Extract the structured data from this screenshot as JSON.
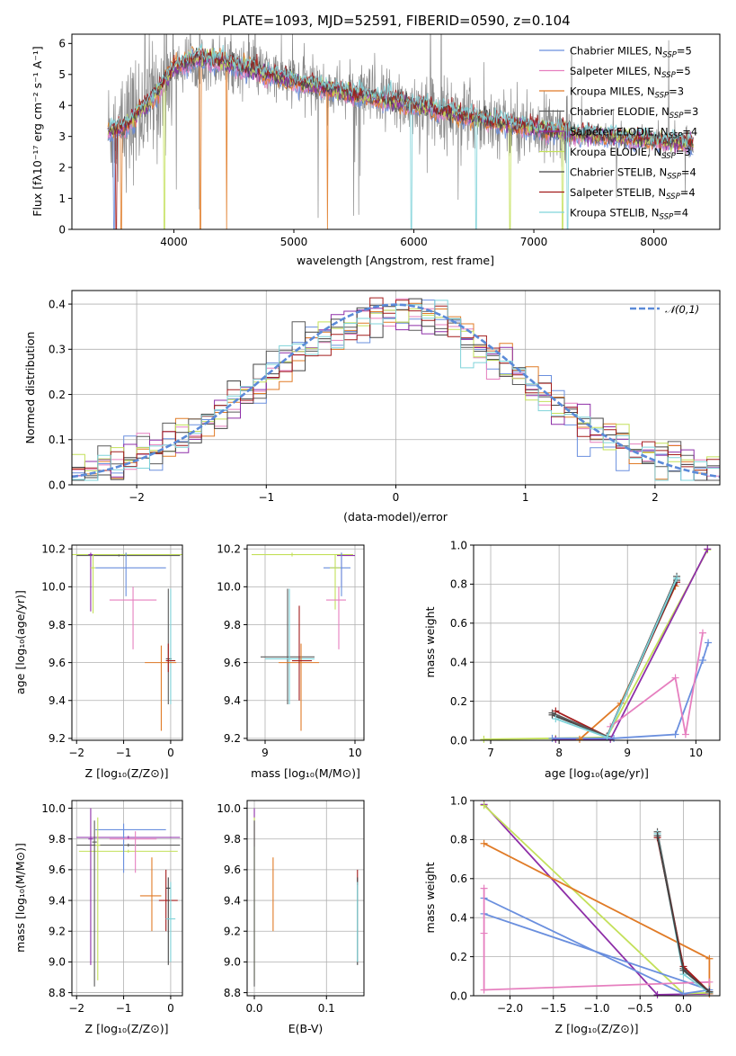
{
  "colors": {
    "chabrier_miles": "#6a8fde",
    "salpeter_miles": "#e67fbf",
    "kroupa_miles": "#e07b27",
    "chabrier_elodie": "#5a5a5a",
    "salpeter_elodie": "#8e2fa8",
    "kroupa_elodie": "#c3e05a",
    "chabrier_stelib": "#444444",
    "salpeter_stelib": "#a31c1c",
    "kroupa_stelib": "#7fd3d9",
    "data": "#888888",
    "gaussian": "#5b8ad8"
  },
  "chart_data": [
    {
      "id": "spectrum",
      "type": "line",
      "title": "PLATE=1093, MJD=52591, FIBERID=0590, z=0.104",
      "xlabel": "wavelength [Angstrom, rest frame]",
      "ylabel": "Flux [fλ10⁻¹⁷ erg cm⁻² s⁻¹ A⁻¹]",
      "xlim": [
        3150,
        8550
      ],
      "ylim": [
        0,
        6.3
      ],
      "xticks": [
        4000,
        5000,
        6000,
        7000,
        8000
      ],
      "yticks": [
        0,
        1,
        2,
        3,
        4,
        5,
        6
      ],
      "grid": false,
      "legend_position": "upper-right",
      "x_range_data": [
        3450,
        8330
      ],
      "continuum_knots": [
        [
          3450,
          3.15
        ],
        [
          3600,
          3.35
        ],
        [
          3800,
          4.1
        ],
        [
          4000,
          5.2
        ],
        [
          4200,
          5.55
        ],
        [
          4500,
          5.3
        ],
        [
          5000,
          4.8
        ],
        [
          5500,
          4.35
        ],
        [
          6000,
          4.0
        ],
        [
          6500,
          3.6
        ],
        [
          7000,
          3.25
        ],
        [
          7500,
          3.05
        ],
        [
          8000,
          2.85
        ],
        [
          8330,
          2.8
        ]
      ],
      "series": [
        {
          "name": "Chabrier MILES, Nₛₛₚ=5",
          "color_key": "chabrier_miles"
        },
        {
          "name": "Salpeter MILES, Nₛₛₚ=5",
          "color_key": "salpeter_miles"
        },
        {
          "name": "Kroupa MILES, Nₛₛₚ=3",
          "color_key": "kroupa_miles"
        },
        {
          "name": "Chabrier ELODIE, Nₛₛₚ=3",
          "color_key": "chabrier_elodie"
        },
        {
          "name": "Salpeter ELODIE, Nₛₛₚ=4",
          "color_key": "salpeter_elodie"
        },
        {
          "name": "Kroupa ELODIE, Nₛₛₚ=3",
          "color_key": "kroupa_elodie"
        },
        {
          "name": "Chabrier STELIB, Nₛₛₚ=4",
          "color_key": "chabrier_stelib"
        },
        {
          "name": "Salpeter STELIB, Nₛₛₚ=4",
          "color_key": "salpeter_stelib"
        },
        {
          "name": "Kroupa STELIB, Nₛₛₚ=4",
          "color_key": "kroupa_stelib"
        }
      ],
      "legend_labels": [
        {
          "pre": "Chabrier MILES, N",
          "sub": "SSP",
          "post": "=5"
        },
        {
          "pre": "Salpeter MILES, N",
          "sub": "SSP",
          "post": "=5"
        },
        {
          "pre": "Kroupa MILES, N",
          "sub": "SSP",
          "post": "=3"
        },
        {
          "pre": "Chabrier ELODIE, N",
          "sub": "SSP",
          "post": "=3"
        },
        {
          "pre": "Salpeter ELODIE, N",
          "sub": "SSP",
          "post": "=4"
        },
        {
          "pre": "Kroupa ELODIE, N",
          "sub": "SSP",
          "post": "=3"
        },
        {
          "pre": "Chabrier STELIB, N",
          "sub": "SSP",
          "post": "=4"
        },
        {
          "pre": "Salpeter STELIB, N",
          "sub": "SSP",
          "post": "=4"
        },
        {
          "pre": "Kroupa STELIB, N",
          "sub": "SSP",
          "post": "=4"
        }
      ]
    },
    {
      "id": "residuals",
      "type": "histogram",
      "xlabel": "(data-model)/error",
      "ylabel": "Normed distribution",
      "xlim": [
        -2.5,
        2.5
      ],
      "ylim": [
        0,
        0.43
      ],
      "xticks": [
        -2,
        -1,
        0,
        1,
        2
      ],
      "yticks": [
        0.0,
        0.1,
        0.2,
        0.3,
        0.4
      ],
      "grid": true,
      "legend_position": "upper-right",
      "legend": "𝒩(0,1)",
      "bin_width": 0.1,
      "series_colors": [
        "chabrier_miles",
        "salpeter_miles",
        "kroupa_miles",
        "chabrier_elodie",
        "salpeter_elodie",
        "kroupa_elodie",
        "chabrier_stelib",
        "salpeter_stelib",
        "kroupa_stelib"
      ]
    },
    {
      "id": "age_vs_Z",
      "type": "errorbar",
      "xlabel": "Z [log₁₀(Z/Z⊙)]",
      "ylabel": "age  [log₁₀(age/yr)]",
      "xlim": [
        -2.1,
        0.25
      ],
      "ylim": [
        9.19,
        10.22
      ],
      "xticks": [
        -2,
        -1,
        0
      ],
      "yticks": [
        9.2,
        9.4,
        9.6,
        9.8,
        10.0,
        10.2
      ],
      "grid": true,
      "points": [
        {
          "c": "kroupa_elodie",
          "x": -0.95,
          "xl": -2.1,
          "xh": 0.25,
          "y": 10.17,
          "yl": 10.16,
          "yh": 10.18
        },
        {
          "c": "chabrier_elodie",
          "x": -1.1,
          "xl": -2.0,
          "xh": 0.2,
          "y": 10.165,
          "yl": 10.16,
          "yh": 10.17
        },
        {
          "c": "salpeter_elodie",
          "x": -1.7,
          "xl": -1.75,
          "xh": -1.65,
          "y": 10.17,
          "yl": 9.87,
          "yh": 10.18
        },
        {
          "c": "kroupa_elodie",
          "x": -1.65,
          "xl": -1.7,
          "xh": -1.6,
          "y": 10.1,
          "yl": 9.86,
          "yh": 10.17
        },
        {
          "c": "chabrier_miles",
          "x": -0.95,
          "xl": -1.6,
          "xh": -0.1,
          "y": 10.1,
          "yl": 9.95,
          "yh": 10.18
        },
        {
          "c": "salpeter_miles",
          "x": -0.8,
          "xl": -1.3,
          "xh": -0.3,
          "y": 9.93,
          "yl": 9.67,
          "yh": 10.0
        },
        {
          "c": "chabrier_elodie",
          "x": -0.05,
          "xl": -0.1,
          "xh": 0.02,
          "y": 9.62,
          "yl": 9.38,
          "yh": 9.99
        },
        {
          "c": "kroupa_stelib",
          "x": 0.0,
          "xl": -0.1,
          "xh": 0.05,
          "y": 9.61,
          "yl": 9.38,
          "yh": 9.99
        },
        {
          "c": "kroupa_miles",
          "x": -0.2,
          "xl": -0.55,
          "xh": 0.12,
          "y": 9.6,
          "yl": 9.24,
          "yh": 9.69
        },
        {
          "c": "salpeter_stelib",
          "x": -0.05,
          "xl": -0.1,
          "xh": 0.1,
          "y": 9.61,
          "yl": 9.55,
          "yh": 9.7
        }
      ]
    },
    {
      "id": "age_vs_mass",
      "type": "errorbar",
      "xlabel": "mass [log₁₀(M/M⊙)]",
      "ylabel": "",
      "xlim": [
        8.8,
        10.1
      ],
      "ylim": [
        9.19,
        10.22
      ],
      "xticks": [
        9,
        10
      ],
      "yticks": [
        9.2,
        9.4,
        9.6,
        9.8,
        10.0,
        10.2
      ],
      "grid": true,
      "points": [
        {
          "c": "kroupa_elodie",
          "x": 9.3,
          "xl": 8.85,
          "xh": 9.98,
          "y": 10.17,
          "yl": 10.16,
          "yh": 10.18
        },
        {
          "c": "salpeter_elodie",
          "x": 9.85,
          "xl": 9.8,
          "xh": 10.0,
          "y": 10.165,
          "yl": 10.0,
          "yh": 10.18
        },
        {
          "c": "chabrier_miles",
          "x": 9.85,
          "xl": 9.65,
          "xh": 9.95,
          "y": 10.1,
          "yl": 9.95,
          "yh": 10.18
        },
        {
          "c": "kroupa_elodie",
          "x": 9.78,
          "xl": 9.72,
          "xh": 9.84,
          "y": 10.1,
          "yl": 9.88,
          "yh": 10.17
        },
        {
          "c": "salpeter_miles",
          "x": 9.82,
          "xl": 9.68,
          "xh": 9.9,
          "y": 9.93,
          "yl": 9.67,
          "yh": 10.0
        },
        {
          "c": "chabrier_elodie",
          "x": 9.25,
          "xl": 8.95,
          "xh": 9.55,
          "y": 9.63,
          "yl": 9.38,
          "yh": 9.99
        },
        {
          "c": "kroupa_stelib",
          "x": 9.27,
          "xl": 9.0,
          "xh": 9.55,
          "y": 9.62,
          "yl": 9.38,
          "yh": 9.99
        },
        {
          "c": "kroupa_miles",
          "x": 9.4,
          "xl": 9.15,
          "xh": 9.6,
          "y": 9.6,
          "yl": 9.24,
          "yh": 9.7
        },
        {
          "c": "salpeter_stelib",
          "x": 9.38,
          "xl": 9.3,
          "xh": 9.52,
          "y": 9.61,
          "yl": 9.4,
          "yh": 9.9
        }
      ]
    },
    {
      "id": "weight_vs_age",
      "type": "line",
      "xlabel": "age  [log₁₀(age/yr)]",
      "ylabel": "mass weight",
      "xlim": [
        6.75,
        10.35
      ],
      "ylim": [
        0,
        1
      ],
      "xticks": [
        7,
        8,
        9,
        10
      ],
      "yticks": [
        0.0,
        0.2,
        0.4,
        0.6,
        0.8,
        1.0
      ],
      "grid": true,
      "series": [
        {
          "c": "kroupa_elodie",
          "x": [
            6.9,
            7.95,
            8.7,
            10.17
          ],
          "y": [
            0.005,
            0.01,
            0.015,
            0.975
          ]
        },
        {
          "c": "salpeter_elodie",
          "x": [
            7.95,
            8.75,
            10.17
          ],
          "y": [
            0.005,
            0.005,
            0.98
          ]
        },
        {
          "c": "chabrier_miles",
          "x": [
            7.9,
            8.8,
            9.7,
            10.1,
            10.18
          ],
          "y": [
            0.01,
            0.01,
            0.03,
            0.41,
            0.5
          ]
        },
        {
          "c": "salpeter_miles",
          "x": [
            8.75,
            9.7,
            9.85,
            10.1
          ],
          "y": [
            0.07,
            0.32,
            0.03,
            0.55
          ]
        },
        {
          "c": "kroupa_miles",
          "x": [
            8.3,
            8.9,
            9.7
          ],
          "y": [
            0.005,
            0.19,
            0.79
          ]
        },
        {
          "c": "salpeter_stelib",
          "x": [
            7.95,
            8.7,
            9.72
          ],
          "y": [
            0.15,
            0.02,
            0.81
          ]
        },
        {
          "c": "chabrier_stelib",
          "x": [
            7.9,
            8.7,
            9.72
          ],
          "y": [
            0.13,
            0.02,
            0.82
          ]
        },
        {
          "c": "chabrier_elodie",
          "x": [
            7.9,
            8.7,
            9.72
          ],
          "y": [
            0.14,
            0.02,
            0.84
          ]
        },
        {
          "c": "kroupa_stelib",
          "x": [
            7.95,
            8.7,
            9.72
          ],
          "y": [
            0.11,
            0.015,
            0.83
          ]
        }
      ]
    },
    {
      "id": "mass_vs_Z",
      "type": "errorbar",
      "xlabel": "Z [log₁₀(Z/Z⊙)]",
      "ylabel": "mass [log₁₀(M/M⊙)]",
      "xlim": [
        -2.1,
        0.25
      ],
      "ylim": [
        8.78,
        10.05
      ],
      "xticks": [
        -2,
        -1,
        0
      ],
      "yticks": [
        8.8,
        9.0,
        9.2,
        9.4,
        9.6,
        9.8,
        10.0
      ],
      "grid": true,
      "points": [
        {
          "c": "salpeter_elodie",
          "x": -0.9,
          "xl": -2.0,
          "xh": 0.2,
          "y": 9.81,
          "yl": 9.8,
          "yh": 9.82
        },
        {
          "c": "chabrier_elodie",
          "x": -0.9,
          "xl": -2.0,
          "xh": 0.2,
          "y": 9.76,
          "yl": 9.75,
          "yh": 9.77
        },
        {
          "c": "kroupa_elodie",
          "x": -0.9,
          "xl": -1.95,
          "xh": 0.15,
          "y": 9.72,
          "yl": 9.71,
          "yh": 9.73
        },
        {
          "c": "chabrier_miles",
          "x": -1.0,
          "xl": -1.6,
          "xh": -0.1,
          "y": 9.86,
          "yl": 9.58,
          "yh": 9.9
        },
        {
          "c": "salpeter_elodie",
          "x": -1.7,
          "xl": -1.75,
          "xh": -1.65,
          "y": 9.8,
          "yl": 8.98,
          "yh": 10.0
        },
        {
          "c": "chabrier_elodie",
          "x": -1.62,
          "xl": -1.67,
          "xh": -1.57,
          "y": 9.78,
          "yl": 8.84,
          "yh": 9.92
        },
        {
          "c": "kroupa_elodie",
          "x": -1.55,
          "xl": -1.6,
          "xh": -1.5,
          "y": 9.76,
          "yl": 8.88,
          "yh": 9.94
        },
        {
          "c": "salpeter_miles",
          "x": -0.75,
          "xl": -1.3,
          "xh": -0.3,
          "y": 9.8,
          "yl": 9.58,
          "yh": 9.85
        },
        {
          "c": "kroupa_miles",
          "x": -0.4,
          "xl": -0.65,
          "xh": -0.2,
          "y": 9.43,
          "yl": 9.2,
          "yh": 9.68
        },
        {
          "c": "salpeter_stelib",
          "x": -0.1,
          "xl": -0.25,
          "xh": 0.15,
          "y": 9.4,
          "yl": 9.2,
          "yh": 9.6
        },
        {
          "c": "chabrier_stelib",
          "x": -0.05,
          "xl": -0.1,
          "xh": 0.0,
          "y": 9.48,
          "yl": 8.98,
          "yh": 9.55
        },
        {
          "c": "kroupa_stelib",
          "x": 0.0,
          "xl": -0.1,
          "xh": 0.1,
          "y": 9.28,
          "yl": 9.0,
          "yh": 9.52
        }
      ]
    },
    {
      "id": "mass_vs_ebv",
      "type": "errorbar",
      "xlabel": "E(B-V)",
      "ylabel": "",
      "xlim": [
        -0.01,
        0.152
      ],
      "ylim": [
        8.78,
        10.05
      ],
      "xticks": [
        0.0,
        0.1
      ],
      "yticks": [
        8.8,
        9.0,
        9.2,
        9.4,
        9.6,
        9.8,
        10.0
      ],
      "grid": true,
      "points": [
        {
          "c": "salpeter_elodie",
          "x": 0.0,
          "xl": 0.0,
          "xh": 0.0,
          "y": 9.81,
          "yl": 9.75,
          "yh": 10.0
        },
        {
          "c": "kroupa_elodie",
          "x": 0.0,
          "xl": 0.0,
          "xh": 0.0,
          "y": 9.72,
          "yl": 8.88,
          "yh": 9.94
        },
        {
          "c": "chabrier_elodie",
          "x": 0.0,
          "xl": 0.0,
          "xh": 0.0,
          "y": 9.76,
          "yl": 8.84,
          "yh": 9.92
        },
        {
          "c": "kroupa_miles",
          "x": 0.026,
          "xl": 0.026,
          "xh": 0.026,
          "y": 9.43,
          "yl": 9.2,
          "yh": 9.68
        },
        {
          "c": "salpeter_stelib",
          "x": 0.143,
          "xl": 0.143,
          "xh": 0.143,
          "y": 9.55,
          "yl": 9.5,
          "yh": 9.6
        },
        {
          "c": "chabrier_stelib",
          "x": 0.143,
          "xl": 0.143,
          "xh": 0.143,
          "y": 9.48,
          "yl": 8.98,
          "yh": 9.55
        },
        {
          "c": "kroupa_stelib",
          "x": 0.143,
          "xl": 0.143,
          "xh": 0.143,
          "y": 9.28,
          "yl": 9.0,
          "yh": 9.52
        }
      ]
    },
    {
      "id": "weight_vs_Z",
      "type": "line",
      "xlabel": "Z [log₁₀(Z/Z⊙)]",
      "ylabel": "mass weight",
      "xlim": [
        -2.42,
        0.42
      ],
      "ylim": [
        0,
        1
      ],
      "xticks": [
        -2.0,
        -1.5,
        -1.0,
        -0.5,
        0.0
      ],
      "yticks": [
        0.0,
        0.2,
        0.4,
        0.6,
        0.8,
        1.0
      ],
      "grid": true,
      "series": [
        {
          "c": "salpeter_elodie",
          "x": [
            -2.3,
            -0.3,
            0.3
          ],
          "y": [
            0.98,
            0.005,
            0.01
          ]
        },
        {
          "c": "kroupa_elodie",
          "x": [
            -2.3,
            0.0,
            0.3
          ],
          "y": [
            0.975,
            0.01,
            0.015
          ]
        },
        {
          "c": "kroupa_miles",
          "x": [
            -2.3,
            0.3,
            0.3
          ],
          "y": [
            0.78,
            0.19,
            0.01
          ]
        },
        {
          "c": "chabrier_miles",
          "x": [
            -2.3,
            0.3,
            0.0,
            -2.3
          ],
          "y": [
            0.42,
            0.03,
            0.01,
            0.5
          ]
        },
        {
          "c": "salpeter_miles",
          "x": [
            -2.3,
            -2.3,
            -2.3,
            0.3
          ],
          "y": [
            0.55,
            0.32,
            0.03,
            0.07
          ]
        },
        {
          "c": "chabrier_elodie",
          "x": [
            -0.3,
            0.0,
            0.3
          ],
          "y": [
            0.84,
            0.14,
            0.02
          ]
        },
        {
          "c": "kroupa_stelib",
          "x": [
            -0.3,
            0.0,
            0.3
          ],
          "y": [
            0.83,
            0.11,
            0.015
          ]
        },
        {
          "c": "salpeter_stelib",
          "x": [
            -0.3,
            0.0,
            0.3
          ],
          "y": [
            0.81,
            0.15,
            0.02
          ]
        },
        {
          "c": "chabrier_stelib",
          "x": [
            -0.3,
            0.0,
            0.3
          ],
          "y": [
            0.82,
            0.13,
            0.02
          ]
        }
      ]
    }
  ]
}
